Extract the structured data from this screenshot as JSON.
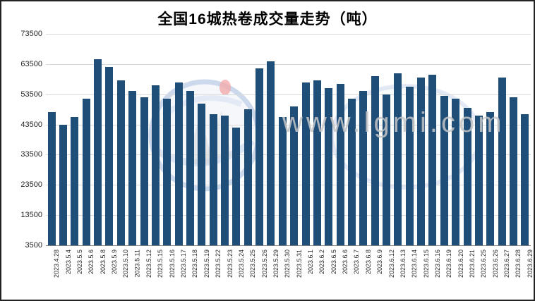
{
  "title": "全国16城热卷成交量走势（吨）",
  "watermark": {
    "text": "www.lgmi.com"
  },
  "colors": {
    "bar": "#1F4E79",
    "gridline": "#D9D9D9",
    "axis_line": "#7F7F7F",
    "title": "#000000",
    "tick_label": "#262626",
    "watermark_text": "#C6C6C6"
  },
  "chart_data": {
    "type": "bar",
    "title": "全国16城热卷成交量走势（吨）",
    "xlabel": "",
    "ylabel": "",
    "ylim": [
      3500,
      73500
    ],
    "yticks": [
      3500,
      13500,
      23500,
      33500,
      43500,
      53500,
      63500,
      73500
    ],
    "grid": true,
    "legend": false,
    "categories": [
      "2023.4.28",
      "2023.5.4",
      "2023.5.5",
      "2023.5.6",
      "2023.5.8",
      "2023.5.9",
      "2023.5.10",
      "2023.5.11",
      "2023.5.12",
      "2023.5.15",
      "2023.5.16",
      "2023.5.17",
      "2023.5.18",
      "2023.5.19",
      "2023.5.22",
      "2023.5.23",
      "2023.5.24",
      "2023.5.25",
      "2023.5.26",
      "2023.5.29",
      "2023.5.30",
      "2023.5.31",
      "2023.6.1",
      "2023.6.2",
      "2023.6.5",
      "2023.6.6",
      "2023.6.7",
      "2023.6.8",
      "2023.6.9",
      "2023.6.12",
      "2023.6.13",
      "2023.6.14",
      "2023.6.15",
      "2023.6.16",
      "2023.6.19",
      "2023.6.20",
      "2023.6.21",
      "2023.6.25",
      "2023.6.26",
      "2023.6.27",
      "2023.6.28",
      "2023.6.29"
    ],
    "values": [
      47500,
      43500,
      46000,
      52000,
      65000,
      62500,
      58000,
      54500,
      52500,
      56500,
      52000,
      57500,
      54500,
      50500,
      47000,
      46500,
      42500,
      48500,
      62000,
      64500,
      46000,
      49500,
      57500,
      58000,
      55500,
      57000,
      52000,
      54500,
      59500,
      53500,
      60500,
      56000,
      59000,
      60000,
      53000,
      52000,
      49000,
      46500,
      47500,
      59000,
      52500,
      47000
    ]
  }
}
